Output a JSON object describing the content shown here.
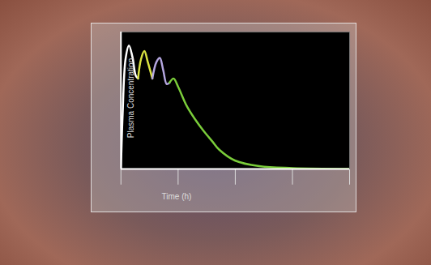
{
  "chart_data": {
    "type": "line",
    "xlabel": "Time (h)",
    "ylabel": "Plasma Concentration",
    "xlim": [
      0,
      4
    ],
    "xticks": [
      0,
      1,
      2,
      3,
      4
    ],
    "ylim": [
      0,
      100
    ],
    "tick_labels": false,
    "series": [
      {
        "color": "#ffffff",
        "x": [
          0,
          0.03,
          0.08,
          0.14,
          0.2,
          0.26,
          0.3
        ],
        "values": [
          0,
          40,
          80,
          90,
          82,
          68,
          66
        ]
      },
      {
        "color": "#d8e040",
        "x": [
          0.3,
          0.35,
          0.41,
          0.47,
          0.55
        ],
        "values": [
          66,
          80,
          86,
          78,
          66
        ]
      },
      {
        "color": "#b4a6e0",
        "x": [
          0.55,
          0.62,
          0.68,
          0.74,
          0.8,
          0.85
        ],
        "values": [
          66,
          78,
          81,
          72,
          62,
          63
        ]
      },
      {
        "color": "#7acc3a",
        "x": [
          0.85,
          0.92,
          1.0,
          1.15,
          1.3,
          1.44,
          1.6,
          1.72,
          2.0,
          2.42,
          3.0,
          4.0
        ],
        "values": [
          63,
          66,
          60,
          46,
          36,
          28,
          20,
          14,
          6,
          2,
          0.6,
          0
        ]
      }
    ]
  }
}
